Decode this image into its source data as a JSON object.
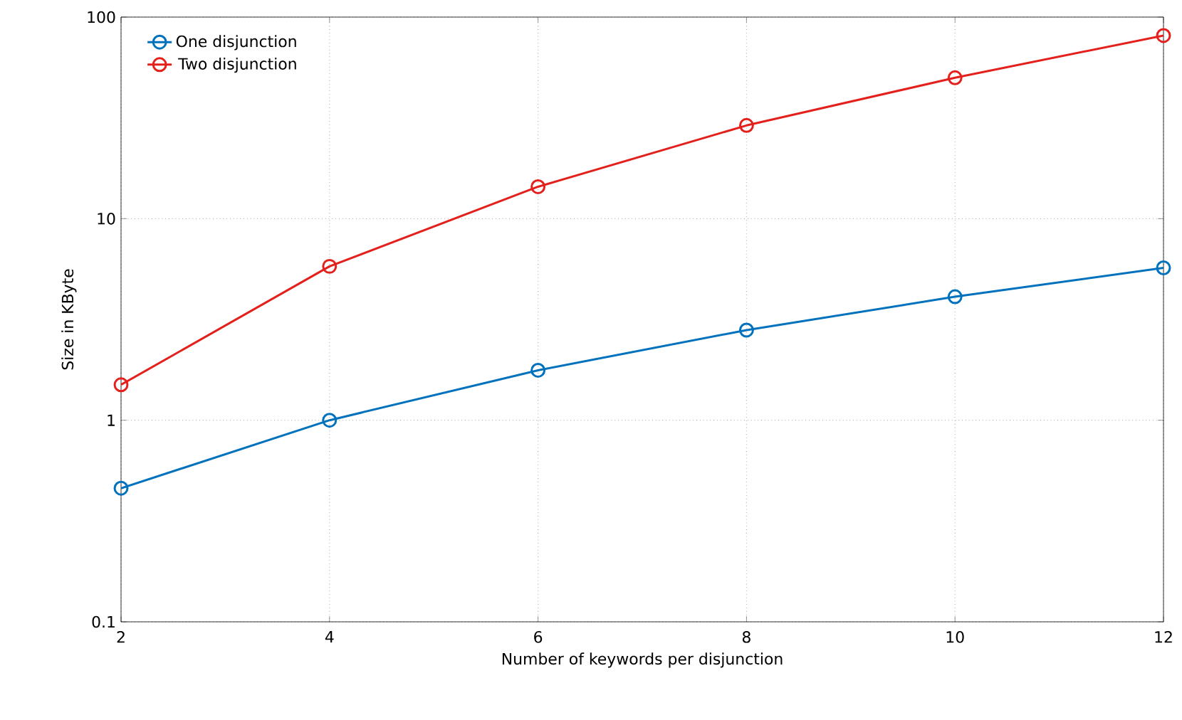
{
  "chart_data": {
    "type": "line",
    "xlabel": "Number of keywords per disjunction",
    "ylabel": "Size in KByte",
    "x": [
      2,
      4,
      6,
      8,
      10,
      12
    ],
    "series": [
      {
        "name": "One disjunction",
        "color": "#0072bd",
        "values": [
          0.46,
          1.0,
          1.77,
          2.8,
          4.1,
          5.7
        ]
      },
      {
        "name": "Two disjunction",
        "color": "#e3201b",
        "values": [
          1.5,
          5.8,
          14.4,
          29,
          50,
          81
        ]
      }
    ],
    "xlim": [
      2,
      12
    ],
    "xticks": [
      2,
      4,
      6,
      8,
      10,
      12
    ],
    "ylim": [
      0.1,
      100
    ],
    "yticks": [
      0.1,
      1,
      10,
      100
    ],
    "log": "y",
    "grid": true,
    "legend": "top left",
    "marker": "circle",
    "line_style": "solid"
  }
}
